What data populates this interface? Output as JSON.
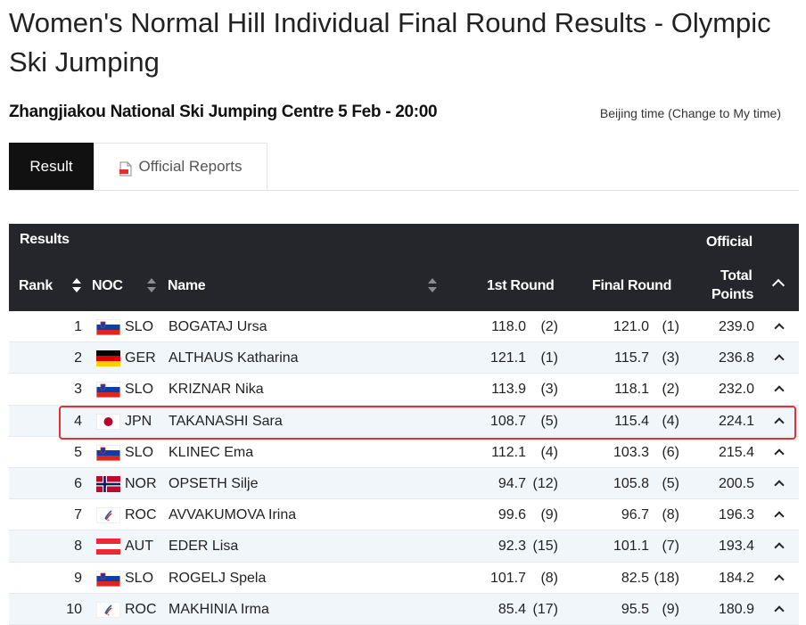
{
  "page": {
    "title": "Women's Normal Hill Individual Final Round Results - Olympic Ski Jumping",
    "venue_line": "Zhangjiakou National Ski Jumping Centre 5 Feb - 20:00",
    "timezone_note": "Beijing time (Change to My time)"
  },
  "tabs": [
    {
      "label": "Result",
      "active": true
    },
    {
      "label": "Official Reports",
      "icon": "pdf-document-icon",
      "active": false
    }
  ],
  "table": {
    "section_label": "Results",
    "status_label": "Official",
    "headers": {
      "rank": "Rank",
      "noc": "NOC",
      "name": "Name",
      "first_round": "1st Round",
      "final_round": "Final Round",
      "total_points_line1": "Total",
      "total_points_line2": "Points"
    },
    "highlight_color": "#e53030",
    "rows": [
      {
        "rank": "1",
        "noc": "SLO",
        "flag": "slovenia",
        "name": "BOGATAJ Ursa",
        "r1": "118.0",
        "r1_rank": "(2)",
        "fr": "121.0",
        "fr_rank": "(1)",
        "total": "239.0"
      },
      {
        "rank": "2",
        "noc": "GER",
        "flag": "germany",
        "name": "ALTHAUS Katharina",
        "r1": "121.1",
        "r1_rank": "(1)",
        "fr": "115.7",
        "fr_rank": "(3)",
        "total": "236.8"
      },
      {
        "rank": "3",
        "noc": "SLO",
        "flag": "slovenia",
        "name": "KRIZNAR Nika",
        "r1": "113.9",
        "r1_rank": "(3)",
        "fr": "118.1",
        "fr_rank": "(2)",
        "total": "232.0"
      },
      {
        "rank": "4",
        "noc": "JPN",
        "flag": "japan",
        "name": "TAKANASHI Sara",
        "r1": "108.7",
        "r1_rank": "(5)",
        "fr": "115.4",
        "fr_rank": "(4)",
        "total": "224.1",
        "highlighted": true
      },
      {
        "rank": "5",
        "noc": "SLO",
        "flag": "slovenia",
        "name": "KLINEC Ema",
        "r1": "112.1",
        "r1_rank": "(4)",
        "fr": "103.3",
        "fr_rank": "(6)",
        "total": "215.4"
      },
      {
        "rank": "6",
        "noc": "NOR",
        "flag": "norway",
        "name": "OPSETH Silje",
        "r1": "94.7",
        "r1_rank": "(12)",
        "fr": "105.8",
        "fr_rank": "(5)",
        "total": "200.5"
      },
      {
        "rank": "7",
        "noc": "ROC",
        "flag": "roc",
        "name": "AVVAKUMOVA Irina",
        "r1": "99.6",
        "r1_rank": "(9)",
        "fr": "96.7",
        "fr_rank": "(8)",
        "total": "196.3"
      },
      {
        "rank": "8",
        "noc": "AUT",
        "flag": "austria",
        "name": "EDER Lisa",
        "r1": "92.3",
        "r1_rank": "(15)",
        "fr": "101.1",
        "fr_rank": "(7)",
        "total": "193.4"
      },
      {
        "rank": "9",
        "noc": "SLO",
        "flag": "slovenia",
        "name": "ROGELJ Spela",
        "r1": "101.7",
        "r1_rank": "(8)",
        "fr": "82.5",
        "fr_rank": "(18)",
        "total": "184.2"
      },
      {
        "rank": "10",
        "noc": "ROC",
        "flag": "roc",
        "name": "MAKHINIA Irma",
        "r1": "85.4",
        "r1_rank": "(17)",
        "fr": "95.5",
        "fr_rank": "(9)",
        "total": "180.9"
      }
    ]
  }
}
